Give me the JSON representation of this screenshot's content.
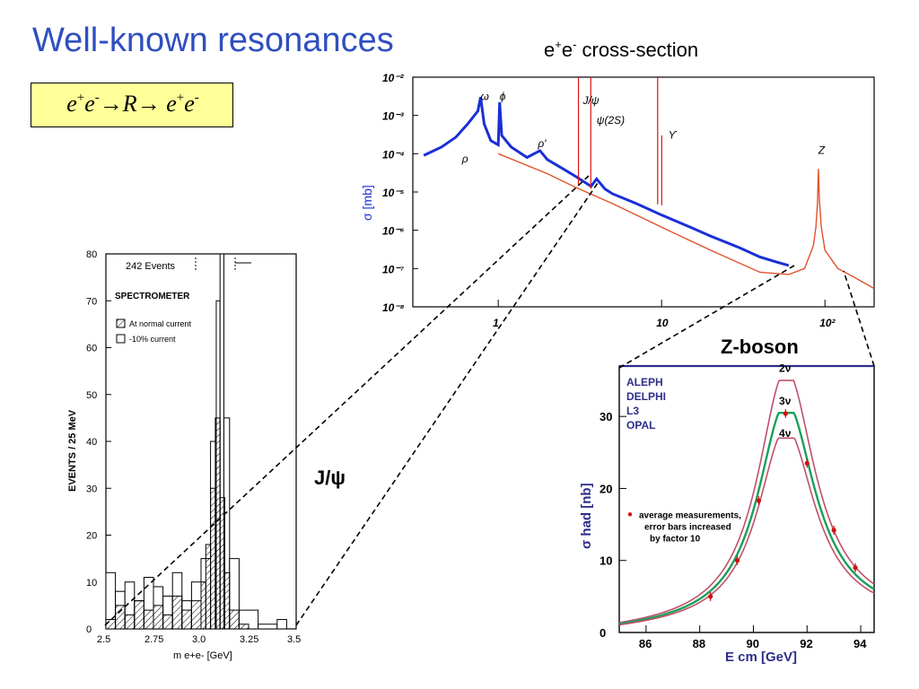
{
  "slide": {
    "title": "Well-known resonances",
    "reaction": {
      "a": "e",
      "b": "e",
      "sup_plus": "+",
      "sup_minus": "-",
      "arrow1": "→",
      "R": "R",
      "arrow2": "→ ",
      "c": "e",
      "d": "e"
    },
    "cross_section_caption": {
      "main": "e",
      "sup1": "+",
      "mid": "e",
      "sup2": "-",
      "tail": " cross-section"
    },
    "zboson_caption": "Z-boson",
    "jpsi_caption": "J/ψ"
  },
  "chart_data": [
    {
      "type": "line",
      "title": "e+e- cross-section",
      "ylabel": "σ [mb]",
      "xscale": "log",
      "yscale": "log",
      "xlim": [
        0.3,
        200
      ],
      "ylim": [
        1e-08,
        0.01
      ],
      "xticks": [
        "1",
        "10",
        "10²"
      ],
      "yticks": [
        "10⁻²",
        "10⁻³",
        "10⁻⁴",
        "10⁻⁵",
        "10⁻⁶",
        "10⁻⁷",
        "10⁻⁸"
      ],
      "resonance_labels": [
        "ω",
        "ϕ",
        "ρ",
        "ρ′",
        "J/ψ",
        "ψ(2S)",
        "ϒ",
        "Z"
      ],
      "series": [
        {
          "name": "",
          "color": "#1a2fd6",
          "x": [
            0.35,
            0.45,
            0.55,
            0.65,
            0.75,
            0.78,
            0.82,
            0.9,
            1.0,
            1.02,
            1.05,
            1.2,
            1.5,
            1.8,
            2.0,
            2.5,
            3.0,
            3.7,
            4.0,
            4.5,
            5.0,
            7.0,
            10,
            15,
            20,
            30,
            40,
            50,
            60
          ],
          "y": [
            9e-05,
            0.00015,
            0.00027,
            0.0006,
            0.0013,
            0.003,
            0.0006,
            0.00022,
            0.00017,
            0.0022,
            0.0003,
            0.00015,
            8e-05,
            0.00012,
            7e-05,
            4e-05,
            2.5e-05,
            1.4e-05,
            2.2e-05,
            1.2e-05,
            9e-06,
            5e-06,
            2.5e-06,
            1.2e-06,
            7e-07,
            3.5e-07,
            2e-07,
            1.5e-07,
            1.2e-07
          ]
        },
        {
          "name": "",
          "color": "#e0522d",
          "x": [
            1.0,
            2.0,
            3.0,
            5.0,
            10,
            20,
            40,
            60,
            75,
            85,
            88,
            90,
            91.2,
            92.5,
            95,
            100,
            120,
            150,
            200
          ],
          "y": [
            0.0001,
            3e-05,
            1.3e-05,
            5e-06,
            1.2e-06,
            3e-07,
            8e-08,
            7e-08,
            1e-07,
            4e-07,
            1.2e-06,
            5e-06,
            4e-05,
            6e-06,
            1.2e-06,
            3e-07,
            1e-07,
            6e-08,
            3e-08
          ]
        },
        {
          "name": "",
          "color": "#e01010",
          "x": [
            3.097,
            3.686,
            9.46,
            10.02
          ],
          "y": [
            0.01,
            0.01,
            0.01,
            0.0003
          ]
        }
      ]
    },
    {
      "type": "bar",
      "title": "242 Events",
      "panel_label": "SPECTROMETER",
      "xlabel": "m e+e- [GeV]",
      "ylabel": "EVENTS / 25 MeV",
      "xlim": [
        2.5,
        3.5
      ],
      "ylim": [
        0,
        80
      ],
      "xticks": [
        "2.5",
        "2.75",
        "3.0",
        "3.25",
        "3.5"
      ],
      "yticks": [
        "0",
        "10",
        "20",
        "30",
        "40",
        "50",
        "60",
        "70",
        "80"
      ],
      "series": [
        {
          "name": "At normal current",
          "x": [
            2.5,
            2.55,
            2.6,
            2.65,
            2.7,
            2.75,
            2.8,
            2.85,
            2.9,
            2.95,
            3.0,
            3.025,
            3.05,
            3.075,
            3.1,
            3.125,
            3.15,
            3.2
          ],
          "values": [
            2,
            5,
            3,
            6,
            4,
            5,
            3,
            7,
            4,
            6,
            10,
            18,
            30,
            45,
            28,
            12,
            4,
            1
          ]
        },
        {
          "name": "-10% current",
          "x": [
            2.5,
            2.55,
            2.6,
            2.65,
            2.7,
            2.75,
            2.8,
            2.85,
            2.9,
            2.95,
            3.0,
            3.05,
            3.08,
            3.1,
            3.12,
            3.15,
            3.2,
            3.3,
            3.4
          ],
          "values": [
            12,
            8,
            10,
            6,
            11,
            9,
            7,
            12,
            6,
            10,
            15,
            40,
            70,
            80,
            45,
            15,
            4,
            1,
            2
          ]
        }
      ]
    },
    {
      "type": "line",
      "xlabel": "E cm [GeV]",
      "ylabel": "σ had [nb]",
      "xlim": [
        85,
        94.5
      ],
      "ylim": [
        0,
        37
      ],
      "xticks": [
        "86",
        "88",
        "90",
        "92",
        "94"
      ],
      "yticks": [
        "0",
        "10",
        "20",
        "30"
      ],
      "experiments": [
        "ALEPH",
        "DELPHI",
        "L3",
        "OPAL"
      ],
      "curve_labels": [
        "2ν",
        "3ν",
        "4ν"
      ],
      "annotation": [
        "average measurements,",
        "error bars increased",
        "by factor 10"
      ],
      "series": [
        {
          "name": "2ν",
          "color": "#c0506a",
          "peak": 35
        },
        {
          "name": "3ν",
          "color": "#1aa05a",
          "peak": 30.5
        },
        {
          "name": "4ν",
          "color": "#c0506a",
          "peak": 27
        }
      ],
      "measurements": {
        "x": [
          88.4,
          89.4,
          90.2,
          91.2,
          92.0,
          93.0,
          93.8
        ],
        "y": [
          5.0,
          10.0,
          18.3,
          30.4,
          23.5,
          14.2,
          9.0
        ]
      }
    }
  ]
}
